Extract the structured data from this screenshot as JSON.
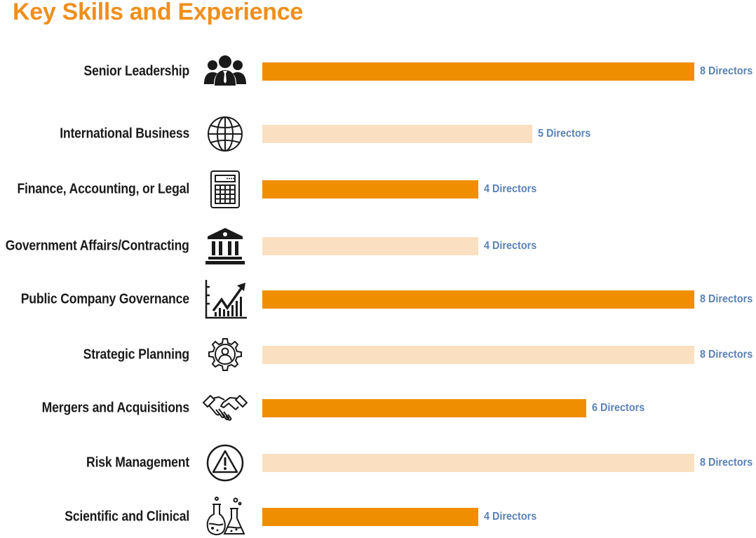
{
  "colors": {
    "title": "#ee8f1d",
    "bar_dark": "#ef8f00",
    "bar_light": "#fae0c0",
    "value_text": "#5a82b6",
    "label_text": "#1a1a1a"
  },
  "chart_data": {
    "type": "bar",
    "orientation": "horizontal",
    "title": "Key Skills and Experience",
    "xlim": [
      0,
      8
    ],
    "unit_label": "Directors",
    "categories": [
      "Senior Leadership",
      "International Business",
      "Finance, Accounting, or Legal",
      "Government Affairs/Contracting",
      "Public Company Governance",
      "Strategic Planning",
      "Mergers and Acquisitions",
      "Risk Management",
      "Scientific and Clinical"
    ],
    "values": [
      8,
      5,
      4,
      4,
      8,
      8,
      6,
      8,
      4
    ],
    "value_labels": [
      "8 Directors",
      "5 Directors",
      "4 Directors",
      "4 Directors",
      "8 Directors",
      "8 Directors",
      "6 Directors",
      "8 Directors",
      "4 Directors"
    ],
    "bar_shades": [
      "dark",
      "light",
      "dark",
      "light",
      "dark",
      "light",
      "dark",
      "light",
      "dark"
    ],
    "icons": [
      "people-group-icon",
      "globe-icon",
      "calculator-icon",
      "government-building-icon",
      "growth-chart-icon",
      "gear-person-icon",
      "handshake-icon",
      "warning-triangle-icon",
      "lab-flasks-icon"
    ]
  }
}
